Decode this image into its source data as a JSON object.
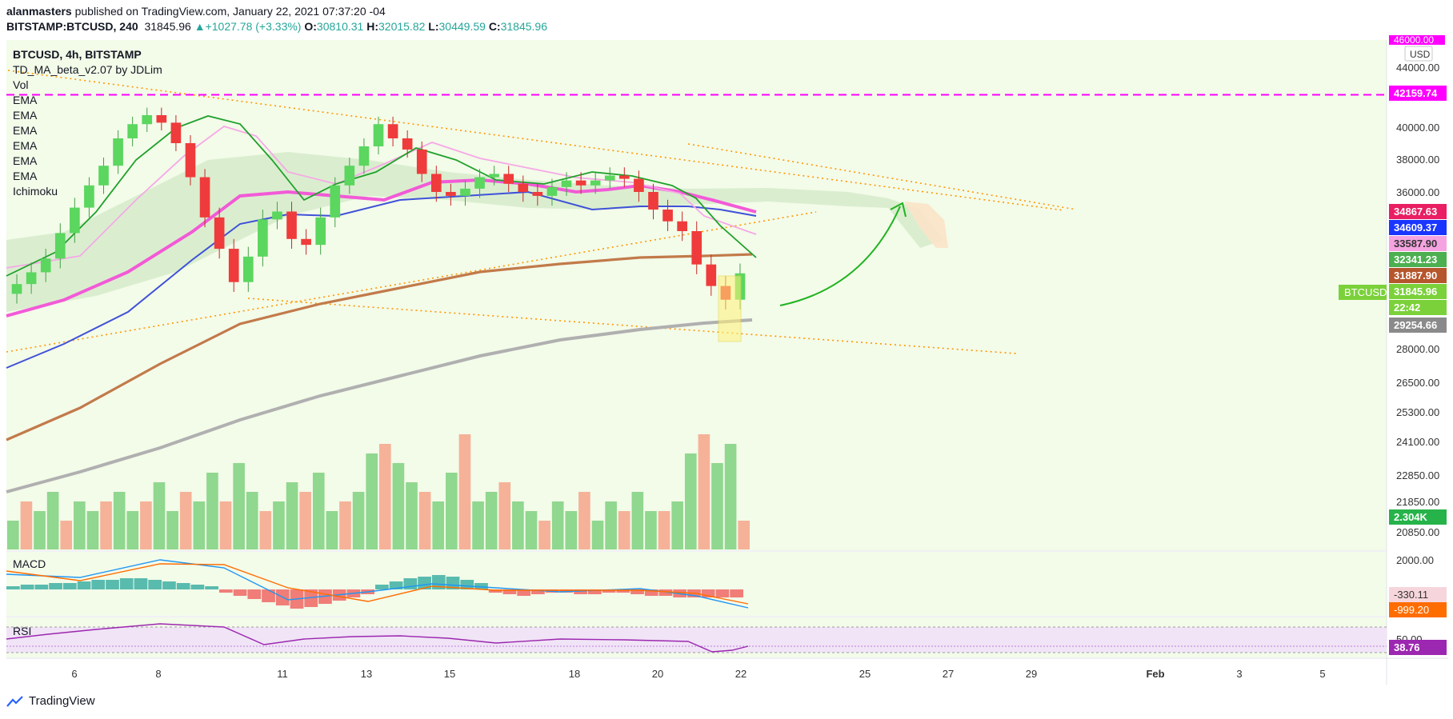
{
  "header": {
    "publisher": "alanmasters",
    "published_text": " published on TradingView.com, January 22, 2021 07:37:20 -04",
    "symbol": "BITSTAMP:BTCUSD, 240",
    "last": "31845.96",
    "change": "+1027.78 (+3.33%)",
    "o_label": "O:",
    "o": "30810.31",
    "h_label": "H:",
    "h": "32015.82",
    "l_label": "L:",
    "l": "30449.59",
    "c_label": "C:",
    "c": "31845.96"
  },
  "legend": {
    "title": "BTCUSD, 4h, BITSTAMP",
    "indicators": [
      "TD_MA_beta_v2.07 by JDLim",
      "Vol",
      "EMA",
      "EMA",
      "EMA",
      "EMA",
      "EMA",
      "EMA",
      "Ichimoku"
    ]
  },
  "macd_label": "MACD",
  "rsi_label": "RSI",
  "footer": {
    "brand": "TradingView"
  },
  "colors": {
    "up": "#26a69a",
    "down": "#ef5350",
    "magenta": "#ff00ff",
    "blue": "#3f51d8",
    "pink": "#ff66cc",
    "brown": "#c27a4a",
    "gray": "#b0b0b0",
    "green": "#1fa12b"
  },
  "chart_data": {
    "type": "candlestick",
    "currency": "USD",
    "price_axis_ticks": [
      "44000.00",
      "40000.00",
      "38000.00",
      "36000.00",
      "28000.00",
      "26500.00",
      "25300.00",
      "24100.00",
      "22850.00",
      "21850.00",
      "20850.00"
    ],
    "price_axis_range": [
      20000,
      46000
    ],
    "date_ticks": [
      "6",
      "8",
      "11",
      "13",
      "15",
      "18",
      "20",
      "22",
      "25",
      "27",
      "29",
      "Feb",
      "3",
      "5"
    ],
    "price_labels": [
      {
        "text": "42159.74",
        "color": "#ff00ff",
        "value": 42159.74
      },
      {
        "text": "34867.63",
        "color": "#e91e63",
        "value": 34867.63
      },
      {
        "text": "34609.37",
        "color": "#1a35ff",
        "value": 34609.37
      },
      {
        "text": "33587.90",
        "color": "#f5a3e0",
        "value": 33587.9
      },
      {
        "text": "32341.23",
        "color": "#4caf50",
        "value": 32341.23
      },
      {
        "text": "31887.90",
        "color": "#b5562c",
        "value": 31887.9
      },
      {
        "text": "31845.96",
        "color": "#7bd13a",
        "value": 31845.96
      },
      {
        "text": "22:42",
        "color": "#7bd13a",
        "value": 31100
      },
      {
        "text": "29254.66",
        "color": "#8a8a8a",
        "value": 29254.66
      },
      {
        "text": "2.304K",
        "color": "#26b34a",
        "value": null
      }
    ],
    "symbol_tag": "BTCUSD",
    "top_label": "46000.00",
    "top_label_partial": "30",
    "macd_axis": [
      "2000.00"
    ],
    "macd_labels": [
      {
        "text": "-330.11",
        "color": "#f6d6dc"
      },
      {
        "text": "-999.20",
        "color": "#ff6d00"
      }
    ],
    "rsi_axis": [
      "50.00"
    ],
    "rsi_labels": [
      {
        "text": "38.76",
        "color": "#9c27b0"
      }
    ],
    "close_series": [
      31300,
      31900,
      32600,
      33900,
      35200,
      36400,
      37600,
      39300,
      40200,
      40800,
      40300,
      39000,
      36900,
      34700,
      33100,
      31400,
      32700,
      34600,
      35000,
      33600,
      33300,
      34700,
      36400,
      37600,
      38800,
      40200,
      39300,
      38600,
      37100,
      36000,
      35800,
      36200,
      36900,
      37100,
      36500,
      36000,
      35800,
      36300,
      36700,
      36400,
      36700,
      37000,
      36800,
      36000,
      35100,
      34500,
      34000,
      32300,
      31200,
      30500,
      31846
    ],
    "volume": [
      3,
      5,
      4,
      6,
      3,
      5,
      4,
      5,
      6,
      4,
      5,
      7,
      4,
      6,
      5,
      8,
      5,
      9,
      6,
      4,
      5,
      7,
      6,
      8,
      4,
      5,
      6,
      10,
      11,
      9,
      7,
      6,
      5,
      8,
      12,
      5,
      6,
      7,
      5,
      4,
      3,
      5,
      4,
      6,
      3,
      5,
      4,
      6,
      4,
      4,
      5,
      10,
      12,
      9,
      11,
      3
    ]
  }
}
